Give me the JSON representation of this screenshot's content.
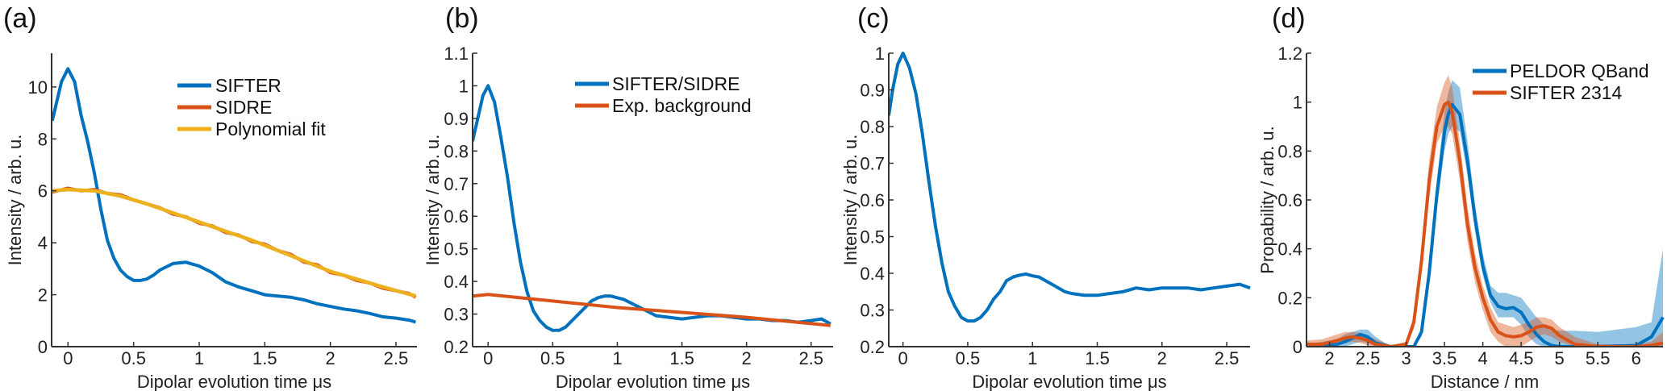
{
  "colors": {
    "blue": "#0072BD",
    "orange": "#D95319",
    "yellow": "#EDB120",
    "axis": "#333333"
  },
  "chart_data": [
    {
      "panel": "(a)",
      "type": "line",
      "xlabel": "Dipolar evolution time μs",
      "ylabel": "Intensity / arb. u.",
      "xlim": [
        -0.125,
        2.66
      ],
      "ylim": [
        0,
        11.3
      ],
      "xticks": [
        0,
        0.5,
        1,
        1.5,
        2,
        2.5
      ],
      "xtick_labels": [
        "0",
        "0.5",
        "1",
        "1.5",
        "2",
        "2.5"
      ],
      "yticks": [
        0,
        2,
        4,
        6,
        8,
        10
      ],
      "ytick_labels": [
        "0",
        "2",
        "4",
        "6",
        "8",
        "10"
      ],
      "legend_position": "top-right",
      "series": [
        {
          "name": "SIFTER",
          "color": "#0072BD",
          "x": [
            -0.12,
            -0.05,
            0,
            0.05,
            0.1,
            0.15,
            0.2,
            0.25,
            0.3,
            0.35,
            0.4,
            0.45,
            0.5,
            0.55,
            0.6,
            0.65,
            0.7,
            0.8,
            0.9,
            1.0,
            1.1,
            1.2,
            1.3,
            1.4,
            1.5,
            1.6,
            1.7,
            1.8,
            1.9,
            2.0,
            2.1,
            2.2,
            2.3,
            2.4,
            2.5,
            2.6,
            2.65
          ],
          "y": [
            8.7,
            10.2,
            10.7,
            10.2,
            8.9,
            7.9,
            6.7,
            5.3,
            4.1,
            3.4,
            2.95,
            2.7,
            2.55,
            2.55,
            2.6,
            2.75,
            2.95,
            3.2,
            3.25,
            3.1,
            2.85,
            2.5,
            2.3,
            2.15,
            2.0,
            1.95,
            1.9,
            1.8,
            1.65,
            1.55,
            1.45,
            1.38,
            1.28,
            1.15,
            1.1,
            1.02,
            0.95
          ]
        },
        {
          "name": "SIDRE",
          "color": "#D95319",
          "x": [
            -0.12,
            0,
            0.1,
            0.2,
            0.3,
            0.4,
            0.5,
            0.6,
            0.7,
            0.8,
            0.9,
            1.0,
            1.1,
            1.2,
            1.3,
            1.4,
            1.5,
            1.6,
            1.7,
            1.8,
            1.9,
            2.0,
            2.1,
            2.2,
            2.3,
            2.4,
            2.5,
            2.6,
            2.65
          ],
          "y": [
            5.95,
            6.1,
            6.0,
            6.05,
            5.9,
            5.85,
            5.65,
            5.5,
            5.35,
            5.1,
            5.0,
            4.75,
            4.65,
            4.4,
            4.3,
            4.05,
            3.95,
            3.7,
            3.55,
            3.25,
            3.15,
            2.85,
            2.75,
            2.55,
            2.45,
            2.25,
            2.15,
            2.05,
            1.9
          ]
        },
        {
          "name": "Polynomial fit",
          "color": "#EDB120",
          "x": [
            -0.12,
            0,
            0.2,
            0.4,
            0.6,
            0.8,
            1.0,
            1.2,
            1.4,
            1.6,
            1.8,
            2.0,
            2.2,
            2.4,
            2.65
          ],
          "y": [
            6.0,
            6.05,
            6.0,
            5.8,
            5.5,
            5.15,
            4.8,
            4.45,
            4.1,
            3.7,
            3.3,
            2.9,
            2.6,
            2.3,
            1.95
          ]
        }
      ]
    },
    {
      "panel": "(b)",
      "type": "line",
      "xlabel": "Dipolar evolution time μs",
      "ylabel": "Intensity / arb. u.",
      "xlim": [
        -0.12,
        2.67
      ],
      "ylim": [
        0.2,
        1.1
      ],
      "xticks": [
        0,
        0.5,
        1,
        1.5,
        2,
        2.5
      ],
      "xtick_labels": [
        "0",
        "0.5",
        "1",
        "1.5",
        "2",
        "2.5"
      ],
      "yticks": [
        0.2,
        0.3,
        0.4,
        0.5,
        0.6,
        0.7,
        0.8,
        0.9,
        1.0,
        1.1
      ],
      "ytick_labels": [
        "0.2",
        "0.3",
        "0.4",
        "0.5",
        "0.6",
        "0.7",
        "0.8",
        "0.9",
        "1",
        "1.1"
      ],
      "legend_position": "top-right",
      "series": [
        {
          "name": "SIFTER/SIDRE",
          "color": "#0072BD",
          "x": [
            -0.12,
            -0.08,
            -0.04,
            0,
            0.05,
            0.1,
            0.15,
            0.2,
            0.25,
            0.3,
            0.35,
            0.4,
            0.45,
            0.5,
            0.55,
            0.6,
            0.65,
            0.7,
            0.75,
            0.8,
            0.85,
            0.9,
            0.95,
            1.0,
            1.05,
            1.1,
            1.2,
            1.3,
            1.4,
            1.5,
            1.6,
            1.7,
            1.8,
            1.9,
            2.0,
            2.1,
            2.2,
            2.3,
            2.4,
            2.5,
            2.58,
            2.65
          ],
          "y": [
            0.83,
            0.9,
            0.97,
            1.0,
            0.95,
            0.84,
            0.72,
            0.58,
            0.46,
            0.37,
            0.31,
            0.28,
            0.26,
            0.25,
            0.25,
            0.26,
            0.28,
            0.3,
            0.32,
            0.34,
            0.35,
            0.355,
            0.355,
            0.35,
            0.345,
            0.335,
            0.315,
            0.295,
            0.29,
            0.285,
            0.29,
            0.295,
            0.295,
            0.29,
            0.285,
            0.285,
            0.28,
            0.28,
            0.275,
            0.28,
            0.285,
            0.27
          ]
        },
        {
          "name": "Exp. background",
          "color": "#D95319",
          "x": [
            -0.12,
            0,
            0.5,
            1.0,
            1.5,
            2.0,
            2.65
          ],
          "y": [
            0.355,
            0.36,
            0.34,
            0.32,
            0.305,
            0.29,
            0.265
          ]
        }
      ]
    },
    {
      "panel": "(c)",
      "type": "line",
      "xlabel": "Dipolar evolution time μs",
      "ylabel": "Intensity / arb. u.",
      "xlim": [
        -0.11,
        2.68
      ],
      "ylim": [
        0.2,
        1.0
      ],
      "xticks": [
        0,
        0.5,
        1,
        1.5,
        2,
        2.5
      ],
      "xtick_labels": [
        "0",
        "0.5",
        "1",
        "1.5",
        "2",
        "2.5"
      ],
      "yticks": [
        0.2,
        0.3,
        0.4,
        0.5,
        0.6,
        0.7,
        0.8,
        0.9,
        1.0
      ],
      "ytick_labels": [
        "0.2",
        "0.3",
        "0.4",
        "0.5",
        "0.6",
        "0.7",
        "0.8",
        "0.9",
        "1"
      ],
      "series": [
        {
          "color": "#0072BD",
          "x": [
            -0.11,
            -0.08,
            -0.04,
            0,
            0.05,
            0.1,
            0.15,
            0.2,
            0.25,
            0.3,
            0.35,
            0.4,
            0.45,
            0.5,
            0.55,
            0.6,
            0.65,
            0.7,
            0.75,
            0.8,
            0.85,
            0.9,
            0.95,
            1.0,
            1.05,
            1.1,
            1.15,
            1.2,
            1.25,
            1.3,
            1.4,
            1.5,
            1.6,
            1.7,
            1.8,
            1.9,
            2.0,
            2.1,
            2.2,
            2.3,
            2.4,
            2.5,
            2.6,
            2.68
          ],
          "y": [
            0.83,
            0.9,
            0.97,
            1.0,
            0.96,
            0.89,
            0.78,
            0.65,
            0.53,
            0.43,
            0.35,
            0.31,
            0.28,
            0.27,
            0.27,
            0.28,
            0.3,
            0.33,
            0.35,
            0.38,
            0.39,
            0.395,
            0.398,
            0.393,
            0.39,
            0.38,
            0.37,
            0.36,
            0.35,
            0.345,
            0.34,
            0.34,
            0.345,
            0.35,
            0.36,
            0.355,
            0.36,
            0.36,
            0.36,
            0.355,
            0.36,
            0.365,
            0.37,
            0.36
          ]
        }
      ]
    },
    {
      "panel": "(d)",
      "type": "line",
      "xlabel": "Distance / nm",
      "ylabel": "Propability / arb. u.",
      "xlim": [
        1.7,
        6.35
      ],
      "ylim": [
        0,
        1.2
      ],
      "xticks": [
        2,
        2.5,
        3,
        3.5,
        4,
        4.5,
        5,
        5.5,
        6
      ],
      "xtick_labels": [
        "2",
        "2.5",
        "3",
        "3.5",
        "4",
        "4.5",
        "5",
        "5.5",
        "6"
      ],
      "yticks": [
        0,
        0.2,
        0.4,
        0.6,
        0.8,
        1.0,
        1.2
      ],
      "ytick_labels": [
        "0",
        "0.2",
        "0.4",
        "0.6",
        "0.8",
        "1",
        "1.2"
      ],
      "legend_position": "top-right",
      "x": [
        1.7,
        1.9,
        2.1,
        2.2,
        2.3,
        2.4,
        2.5,
        2.6,
        2.8,
        3.0,
        3.1,
        3.2,
        3.3,
        3.4,
        3.5,
        3.55,
        3.6,
        3.7,
        3.8,
        3.9,
        4.0,
        4.1,
        4.2,
        4.3,
        4.4,
        4.5,
        4.6,
        4.7,
        4.8,
        4.9,
        5.0,
        5.2,
        5.5,
        6.0,
        6.2,
        6.35
      ],
      "series": [
        {
          "name": "PELDOR QBand",
          "color": "#0072BD",
          "y": [
            0,
            0.002,
            0.01,
            0.02,
            0.035,
            0.05,
            0.04,
            0.015,
            0,
            0,
            0,
            0.06,
            0.3,
            0.62,
            0.88,
            0.95,
            0.99,
            0.95,
            0.76,
            0.52,
            0.33,
            0.21,
            0.165,
            0.155,
            0.16,
            0.14,
            0.09,
            0.05,
            0.02,
            0.005,
            0,
            0,
            0,
            0.005,
            0.04,
            0.12
          ],
          "lower": [
            0,
            0,
            0,
            0,
            0.01,
            0.02,
            0.015,
            0,
            0,
            0,
            0,
            0.04,
            0.26,
            0.56,
            0.8,
            0.87,
            0.9,
            0.88,
            0.7,
            0.47,
            0.29,
            0.18,
            0.12,
            0.12,
            0.12,
            0.09,
            0.04,
            0.01,
            0,
            0,
            0,
            0,
            0,
            0,
            0,
            0
          ],
          "upper": [
            0.01,
            0.02,
            0.03,
            0.05,
            0.06,
            0.07,
            0.07,
            0.04,
            0,
            0,
            0,
            0.08,
            0.34,
            0.68,
            0.96,
            1.04,
            1.09,
            1.06,
            0.84,
            0.58,
            0.38,
            0.25,
            0.22,
            0.22,
            0.21,
            0.2,
            0.16,
            0.12,
            0.09,
            0.07,
            0.065,
            0.065,
            0.06,
            0.08,
            0.1,
            0.4
          ]
        },
        {
          "name": "SIFTER 2314",
          "color": "#D95319",
          "y": [
            0.01,
            0.01,
            0.025,
            0.035,
            0.04,
            0.035,
            0.025,
            0.01,
            0,
            0.01,
            0.1,
            0.35,
            0.68,
            0.9,
            0.99,
            1.0,
            0.96,
            0.76,
            0.5,
            0.32,
            0.2,
            0.11,
            0.06,
            0.045,
            0.04,
            0.045,
            0.06,
            0.08,
            0.085,
            0.075,
            0.045,
            0.01,
            0,
            0,
            0.005,
            0.015
          ],
          "lower": [
            0,
            0,
            0.005,
            0.015,
            0.02,
            0.015,
            0.005,
            0,
            0,
            0,
            0.07,
            0.3,
            0.6,
            0.83,
            0.9,
            0.9,
            0.87,
            0.68,
            0.43,
            0.26,
            0.15,
            0.06,
            0.02,
            0,
            0,
            0,
            0.02,
            0.04,
            0.05,
            0.04,
            0.02,
            0,
            0,
            0,
            0,
            0
          ],
          "upper": [
            0.025,
            0.03,
            0.05,
            0.06,
            0.06,
            0.055,
            0.045,
            0.03,
            0.005,
            0.02,
            0.13,
            0.4,
            0.76,
            0.98,
            1.08,
            1.11,
            1.06,
            0.84,
            0.57,
            0.38,
            0.25,
            0.16,
            0.1,
            0.09,
            0.08,
            0.09,
            0.1,
            0.12,
            0.12,
            0.11,
            0.08,
            0.04,
            0.01,
            0.01,
            0.02,
            0.06
          ]
        }
      ]
    }
  ]
}
